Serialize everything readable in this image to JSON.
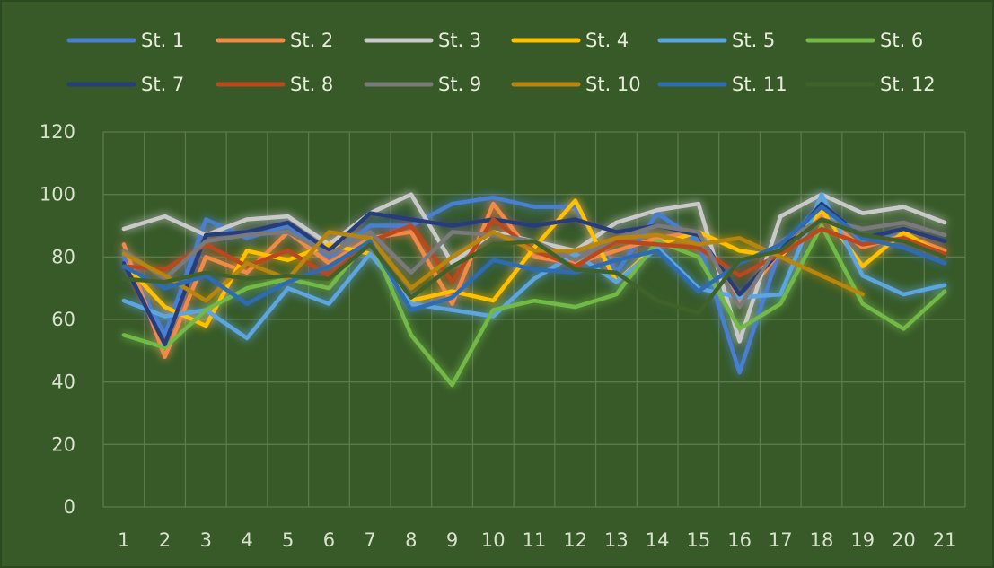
{
  "chart_data": {
    "type": "line",
    "categories": [
      "1",
      "2",
      "3",
      "4",
      "5",
      "6",
      "7",
      "8",
      "9",
      "10",
      "11",
      "12",
      "13",
      "14",
      "15",
      "16",
      "17",
      "18",
      "19",
      "20",
      "21"
    ],
    "ylim": [
      0,
      120
    ],
    "yticks": [
      0,
      20,
      40,
      60,
      80,
      100,
      120
    ],
    "grid": true,
    "legend_position": "top",
    "background_color": "#375a28",
    "grid_color": "#5b7a4e",
    "series": [
      {
        "name": "St. 1",
        "color": "#4a7fd0",
        "values": [
          80,
          55,
          92,
          86,
          90,
          80,
          90,
          90,
          97,
          99,
          96,
          96,
          75,
          94,
          85,
          43,
          83,
          97,
          85,
          87,
          80
        ]
      },
      {
        "name": "St. 2",
        "color": "#ef8a47",
        "values": [
          84,
          48,
          80,
          75,
          88,
          78,
          86,
          88,
          65,
          97,
          80,
          78,
          82,
          86,
          88,
          65,
          82,
          93,
          83,
          87,
          82
        ]
      },
      {
        "name": "St. 3",
        "color": "#c9c9c9",
        "values": [
          89,
          93,
          87,
          92,
          93,
          84,
          94,
          100,
          78,
          88,
          85,
          82,
          91,
          95,
          97,
          53,
          93,
          100,
          94,
          96,
          91
        ]
      },
      {
        "name": "St. 4",
        "color": "#ffc000",
        "values": [
          78,
          64,
          58,
          82,
          79,
          84,
          81,
          66,
          69,
          66,
          83,
          98,
          72,
          84,
          88,
          82,
          80,
          95,
          77,
          88,
          80
        ]
      },
      {
        "name": "St. 5",
        "color": "#5ba5de",
        "values": [
          66,
          61,
          63,
          54,
          70,
          65,
          81,
          65,
          63,
          61,
          73,
          81,
          72,
          83,
          70,
          67,
          68,
          100,
          74,
          68,
          71
        ]
      },
      {
        "name": "St. 6",
        "color": "#72b947",
        "values": [
          55,
          51,
          63,
          70,
          73,
          70,
          86,
          55,
          39,
          63,
          66,
          64,
          68,
          85,
          80,
          57,
          65,
          90,
          65,
          57,
          69
        ]
      },
      {
        "name": "St. 7",
        "color": "#263e7a",
        "values": [
          78,
          52,
          87,
          88,
          91,
          82,
          94,
          92,
          90,
          92,
          90,
          92,
          88,
          90,
          87,
          68,
          82,
          97,
          86,
          89,
          85
        ]
      },
      {
        "name": "St. 8",
        "color": "#b94a1a",
        "values": [
          77,
          76,
          84,
          77,
          82,
          74,
          85,
          90,
          72,
          92,
          82,
          77,
          85,
          84,
          83,
          74,
          81,
          89,
          84,
          86,
          81
        ]
      },
      {
        "name": "St. 9",
        "color": "#7a7a7a",
        "values": [
          82,
          73,
          85,
          87,
          88,
          81,
          88,
          75,
          88,
          87,
          85,
          79,
          86,
          90,
          88,
          64,
          85,
          92,
          89,
          91,
          87
        ]
      },
      {
        "name": "St. 10",
        "color": "#b8860b",
        "values": [
          81,
          74,
          66,
          78,
          73,
          88,
          86,
          70,
          80,
          88,
          82,
          82,
          86,
          87,
          84,
          86,
          80,
          74,
          68,
          null,
          null
        ]
      },
      {
        "name": "St. 11",
        "color": "#2f6cb1",
        "values": [
          77,
          70,
          74,
          65,
          72,
          77,
          85,
          63,
          67,
          79,
          76,
          75,
          79,
          82,
          69,
          78,
          84,
          96,
          86,
          83,
          78
        ]
      },
      {
        "name": "St. 12",
        "color": "#3f6229",
        "values": [
          73,
          72,
          75,
          73,
          74,
          73,
          84,
          67,
          77,
          84,
          85,
          76,
          75,
          66,
          62,
          79,
          82,
          92,
          87,
          85,
          80
        ]
      }
    ]
  }
}
